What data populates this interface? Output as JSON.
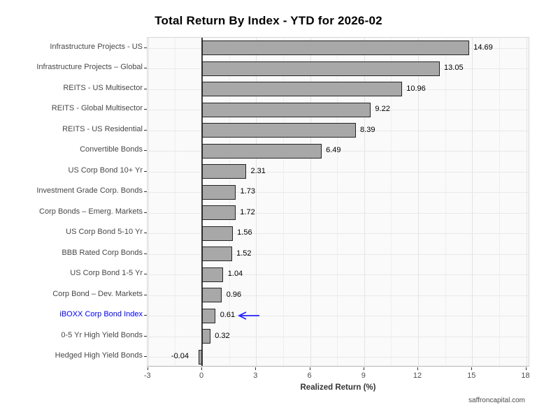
{
  "title": "Total Return By Index - YTD for 2026-02",
  "watermark": "saffroncapital.com",
  "chart_data": {
    "type": "bar",
    "orientation": "horizontal",
    "title": "Total Return By Index - YTD for 2026-02",
    "xlabel": "Realized Return (%)",
    "ylabel": "",
    "categories": [
      "Infrastructure Projects - US",
      "Infrastructure Projects – Global",
      "REITS - US Multisector",
      "REITS - Global Multisector",
      "REITS - US Residential",
      "Convertible Bonds",
      "US Corp Bond 10+ Yr",
      "Investment Grade Corp. Bonds",
      "Corp Bonds – Emerg. Markets",
      "US Corp Bond 5-10 Yr",
      "BBB Rated Corp Bonds",
      "US Corp Bond 1-5 Yr",
      "Corp Bond – Dev. Markets",
      "iBOXX Corp Bond Index",
      "0-5 Yr High Yield Bonds",
      "Hedged High Yield Bonds"
    ],
    "values": [
      14.69,
      13.05,
      10.96,
      9.22,
      8.39,
      6.49,
      2.31,
      1.73,
      1.72,
      1.56,
      1.52,
      1.04,
      0.96,
      0.61,
      0.32,
      -0.04
    ],
    "value_labels": [
      "14.69",
      "13.05",
      "10.96",
      "9.22",
      "8.39",
      "6.49",
      "2.31",
      "1.73",
      "1.72",
      "1.56",
      "1.52",
      "1.04",
      "0.96",
      "0.61",
      "0.32",
      "-0.04"
    ],
    "xticks": [
      -3,
      0,
      3,
      6,
      9,
      12,
      15,
      18
    ],
    "xlim": [
      -3.05,
      18.2
    ],
    "grid": true,
    "legend_position": "none",
    "bar_color": "#a8a8a8",
    "bar_border_color": "#242424",
    "highlight": {
      "category": "iBOXX Corp Bond Index",
      "index": 13,
      "label_color": "#0000ee",
      "arrow_color": "#2222ff",
      "arrow_direction": "left"
    }
  }
}
